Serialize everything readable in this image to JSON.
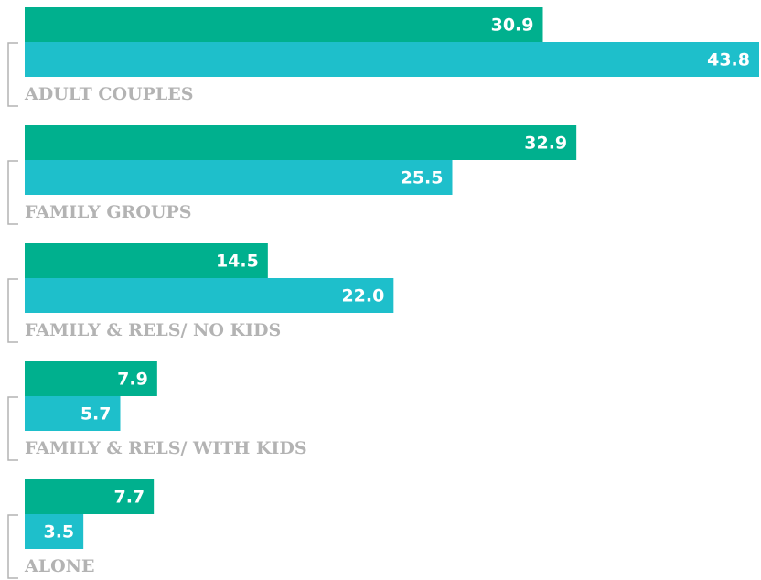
{
  "chart_data": {
    "type": "barh",
    "categories": [
      "ADULT COUPLES",
      "FAMILY GROUPS",
      "FAMILY & RELS/ NO KIDS",
      "FAMILY & RELS/ WITH KIDS",
      "ALONE"
    ],
    "series": [
      {
        "color": "#00b08e",
        "values": [
          30.9,
          32.9,
          14.5,
          7.9,
          7.7
        ],
        "value_labels": [
          "30.9",
          "32.9",
          "14.5",
          "7.9",
          "7.7"
        ]
      },
      {
        "color": "#1ebfcb",
        "values": [
          43.8,
          25.5,
          22.0,
          5.7,
          3.5
        ],
        "value_labels": [
          "43.8",
          "25.5",
          "22.0",
          "5.7",
          "3.5"
        ]
      }
    ]
  }
}
